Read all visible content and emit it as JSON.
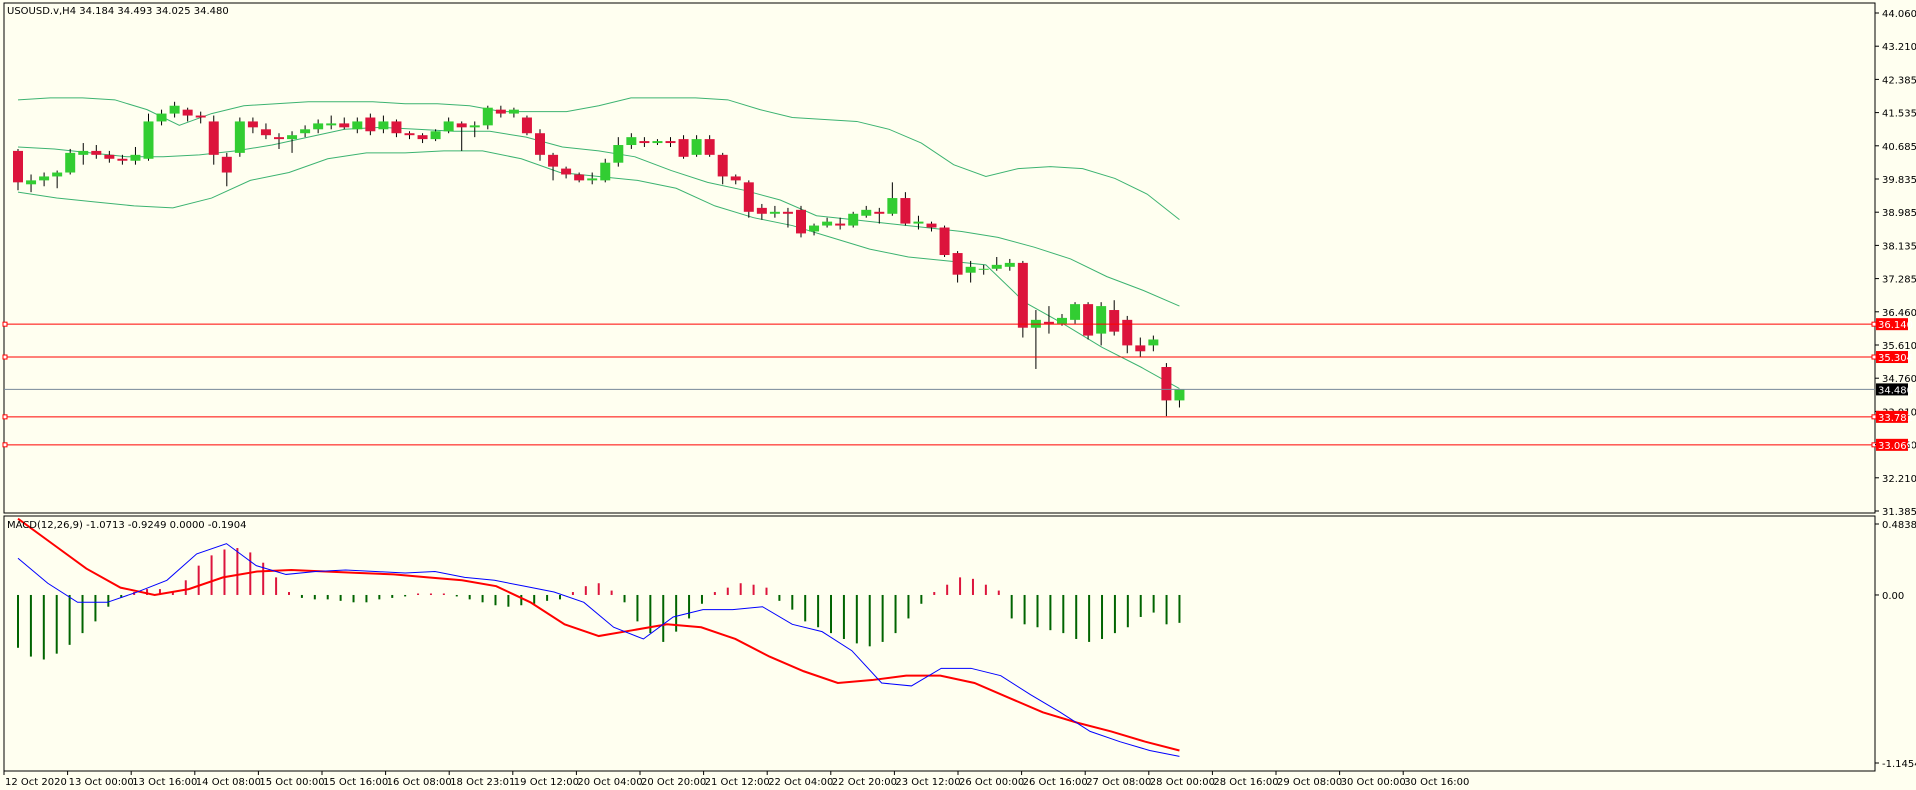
{
  "window": {
    "symbol_line": "USOUSD.v,H4  34.184 34.493 34.025 34.480",
    "macd_label": "MACD(12,26,9) -1.0713 -0.9249 0.0000 -0.1904"
  },
  "colors": {
    "background": "#FFFFF0",
    "bull": "#32CD32",
    "bear": "#DC143C",
    "band": "#3CB371",
    "level_line": "#FF0000",
    "price_line": "#778899",
    "macd_hist": "#006400",
    "macd_signal": "#FF0000",
    "macd_main": "#0000FF"
  },
  "price_axis": {
    "labels": [
      "44.060",
      "43.210",
      "42.385",
      "41.535",
      "40.685",
      "39.835",
      "38.985",
      "38.135",
      "37.285",
      "36.460",
      "35.610",
      "34.760",
      "33.910",
      "33.060",
      "32.210",
      "31.385"
    ]
  },
  "price_tags": [
    {
      "label": "36.140",
      "value": 36.14,
      "kind": "level"
    },
    {
      "label": "35.304",
      "value": 35.304,
      "kind": "level"
    },
    {
      "label": "34.480",
      "value": 34.48,
      "kind": "current"
    },
    {
      "label": "33.781",
      "value": 33.781,
      "kind": "level"
    },
    {
      "label": "33.069",
      "value": 33.069,
      "kind": "level"
    }
  ],
  "macd_axis": {
    "labels": [
      "0.4838",
      "0.00",
      "-1.1454"
    ]
  },
  "time_axis": {
    "labels": [
      "12 Oct 2020",
      "13 Oct 00:00",
      "13 Oct 16:00",
      "14 Oct 08:00",
      "15 Oct 00:00",
      "15 Oct 16:00",
      "16 Oct 08:00",
      "18 Oct 23:01",
      "19 Oct 12:00",
      "20 Oct 04:00",
      "20 Oct 20:00",
      "21 Oct 12:00",
      "22 Oct 04:00",
      "22 Oct 20:00",
      "23 Oct 12:00",
      "26 Oct 00:00",
      "26 Oct 16:00",
      "27 Oct 08:00",
      "28 Oct 00:00",
      "28 Oct 16:00",
      "29 Oct 08:00",
      "30 Oct 00:00",
      "30 Oct 16:00"
    ]
  },
  "chart_data": {
    "type": "candlestick",
    "ylim": [
      31.385,
      44.06
    ],
    "candles": [
      [
        40.55,
        39.75,
        40.6,
        39.55
      ],
      [
        39.7,
        39.8,
        39.95,
        39.5
      ],
      [
        39.8,
        39.9,
        40.0,
        39.65
      ],
      [
        39.9,
        40.0,
        40.05,
        39.6
      ],
      [
        40.0,
        40.5,
        40.6,
        39.95
      ],
      [
        40.45,
        40.55,
        40.75,
        40.2
      ],
      [
        40.55,
        40.45,
        40.7,
        40.35
      ],
      [
        40.45,
        40.35,
        40.55,
        40.25
      ],
      [
        40.35,
        40.3,
        40.45,
        40.2
      ],
      [
        40.3,
        40.45,
        40.65,
        40.2
      ],
      [
        40.35,
        41.3,
        41.5,
        40.3
      ],
      [
        41.3,
        41.5,
        41.6,
        41.2
      ],
      [
        41.5,
        41.7,
        41.8,
        41.4
      ],
      [
        41.6,
        41.45,
        41.65,
        41.3
      ],
      [
        41.45,
        41.4,
        41.55,
        41.25
      ],
      [
        41.3,
        40.45,
        41.45,
        40.2
      ],
      [
        40.4,
        40.0,
        40.5,
        39.65
      ],
      [
        40.5,
        41.3,
        41.4,
        40.4
      ],
      [
        41.3,
        41.15,
        41.4,
        41.0
      ],
      [
        41.1,
        40.95,
        41.25,
        40.85
      ],
      [
        40.9,
        40.85,
        41.0,
        40.6
      ],
      [
        40.85,
        40.95,
        41.05,
        40.5
      ],
      [
        41.0,
        41.1,
        41.2,
        40.9
      ],
      [
        41.1,
        41.25,
        41.35,
        41.0
      ],
      [
        41.2,
        41.25,
        41.45,
        41.1
      ],
      [
        41.25,
        41.15,
        41.4,
        41.1
      ],
      [
        41.1,
        41.3,
        41.4,
        41.0
      ],
      [
        41.4,
        41.05,
        41.5,
        40.95
      ],
      [
        41.1,
        41.3,
        41.45,
        41.0
      ],
      [
        41.3,
        41.0,
        41.35,
        40.9
      ],
      [
        41.0,
        40.95,
        41.05,
        40.85
      ],
      [
        40.95,
        40.85,
        41.0,
        40.75
      ],
      [
        40.85,
        41.05,
        41.1,
        40.8
      ],
      [
        41.05,
        41.3,
        41.4,
        41.0
      ],
      [
        41.25,
        41.15,
        41.3,
        40.55
      ],
      [
        41.15,
        41.2,
        41.3,
        40.9
      ],
      [
        41.2,
        41.65,
        41.7,
        41.1
      ],
      [
        41.6,
        41.5,
        41.7,
        41.4
      ],
      [
        41.5,
        41.6,
        41.65,
        41.4
      ],
      [
        41.4,
        41.0,
        41.45,
        40.95
      ],
      [
        41.0,
        40.45,
        41.1,
        40.3
      ],
      [
        40.45,
        40.15,
        40.5,
        39.8
      ],
      [
        40.1,
        39.95,
        40.15,
        39.85
      ],
      [
        39.95,
        39.8,
        40.0,
        39.75
      ],
      [
        39.8,
        39.85,
        40.0,
        39.7
      ],
      [
        39.8,
        40.25,
        40.35,
        39.75
      ],
      [
        40.25,
        40.7,
        40.9,
        40.15
      ],
      [
        40.7,
        40.9,
        41.0,
        40.6
      ],
      [
        40.8,
        40.75,
        40.9,
        40.65
      ],
      [
        40.75,
        40.8,
        40.85,
        40.7
      ],
      [
        40.8,
        40.75,
        40.9,
        40.65
      ],
      [
        40.85,
        40.4,
        40.95,
        40.35
      ],
      [
        40.45,
        40.85,
        40.95,
        40.4
      ],
      [
        40.85,
        40.45,
        40.95,
        40.4
      ],
      [
        40.45,
        39.9,
        40.5,
        39.7
      ],
      [
        39.9,
        39.8,
        39.95,
        39.7
      ],
      [
        39.75,
        39.0,
        39.8,
        38.85
      ],
      [
        39.1,
        38.95,
        39.2,
        38.8
      ],
      [
        38.95,
        39.0,
        39.15,
        38.85
      ],
      [
        39.0,
        38.95,
        39.1,
        38.6
      ],
      [
        39.05,
        38.45,
        39.15,
        38.35
      ],
      [
        38.5,
        38.65,
        38.7,
        38.4
      ],
      [
        38.65,
        38.75,
        38.85,
        38.6
      ],
      [
        38.7,
        38.65,
        38.85,
        38.55
      ],
      [
        38.65,
        38.95,
        39.0,
        38.6
      ],
      [
        38.9,
        39.05,
        39.15,
        38.85
      ],
      [
        39.0,
        38.95,
        39.1,
        38.7
      ],
      [
        38.95,
        39.35,
        39.75,
        38.9
      ],
      [
        39.35,
        38.7,
        39.5,
        38.65
      ],
      [
        38.7,
        38.75,
        38.9,
        38.55
      ],
      [
        38.7,
        38.6,
        38.75,
        38.5
      ],
      [
        38.6,
        37.9,
        38.65,
        37.85
      ],
      [
        37.95,
        37.4,
        38.0,
        37.2
      ],
      [
        37.45,
        37.6,
        37.75,
        37.2
      ],
      [
        37.55,
        37.55,
        37.65,
        37.4
      ],
      [
        37.55,
        37.65,
        37.85,
        37.5
      ],
      [
        37.6,
        37.7,
        37.8,
        37.5
      ],
      [
        37.7,
        36.05,
        37.75,
        35.8
      ],
      [
        36.05,
        36.25,
        36.5,
        35.0
      ],
      [
        36.2,
        36.15,
        36.6,
        35.9
      ],
      [
        36.15,
        36.3,
        36.4,
        36.1
      ],
      [
        36.25,
        36.65,
        36.7,
        36.15
      ],
      [
        36.65,
        35.85,
        36.7,
        35.75
      ],
      [
        35.9,
        36.6,
        36.7,
        35.6
      ],
      [
        36.5,
        35.95,
        36.75,
        35.85
      ],
      [
        36.25,
        35.6,
        36.35,
        35.4
      ],
      [
        35.6,
        35.45,
        35.8,
        35.3
      ],
      [
        35.6,
        35.75,
        35.85,
        35.45
      ],
      [
        35.05,
        34.2,
        35.15,
        33.8
      ],
      [
        34.2,
        34.48,
        34.49,
        34.02
      ]
    ],
    "upper_band": [
      41.85,
      41.9,
      41.9,
      41.85,
      41.6,
      41.2,
      41.5,
      41.7,
      41.75,
      41.8,
      41.8,
      41.8,
      41.75,
      41.75,
      41.7,
      41.55,
      41.55,
      41.55,
      41.7,
      41.9,
      41.9,
      41.9,
      41.85,
      41.6,
      41.4,
      41.35,
      41.3,
      41.1,
      40.75,
      40.2,
      39.9,
      40.1,
      40.15,
      40.1,
      39.85,
      39.45,
      38.8
    ],
    "middle_band": [
      40.65,
      40.6,
      40.5,
      40.4,
      40.4,
      40.45,
      40.55,
      40.7,
      40.9,
      41.1,
      41.15,
      41.1,
      41.05,
      41.05,
      40.9,
      40.65,
      40.55,
      40.4,
      40.05,
      39.75,
      39.55,
      39.3,
      38.9,
      38.8,
      38.7,
      38.6,
      38.5,
      38.35,
      38.1,
      37.8,
      37.35,
      37.0,
      36.6
    ],
    "lower_band": [
      39.5,
      39.35,
      39.25,
      39.15,
      39.1,
      39.35,
      39.8,
      40.0,
      40.35,
      40.5,
      40.5,
      40.55,
      40.55,
      40.35,
      40.0,
      39.9,
      39.8,
      39.6,
      39.15,
      38.85,
      38.65,
      38.35,
      38.05,
      37.85,
      37.75,
      37.65,
      36.7,
      36.15,
      35.55,
      35.05,
      34.5
    ],
    "levels": [
      36.14,
      35.304,
      33.781,
      33.069
    ],
    "current_price": 34.48,
    "macd": {
      "ylim": [
        -1.1454,
        0.4838
      ],
      "histogram": [
        -0.36,
        -0.42,
        -0.44,
        -0.4,
        -0.34,
        -0.26,
        -0.18,
        -0.08,
        -0.02,
        0.02,
        0.04,
        0.04,
        0.02,
        0.1,
        0.2,
        0.27,
        0.31,
        0.32,
        0.29,
        0.22,
        0.12,
        0.02,
        -0.02,
        -0.03,
        -0.03,
        -0.04,
        -0.05,
        -0.05,
        -0.03,
        -0.02,
        -0.01,
        0.01,
        0.01,
        0.01,
        -0.01,
        -0.03,
        -0.05,
        -0.07,
        -0.08,
        -0.07,
        -0.06,
        -0.04,
        -0.03,
        0.02,
        0.06,
        0.08,
        0.03,
        -0.05,
        -0.18,
        -0.26,
        -0.32,
        -0.25,
        -0.16,
        -0.06,
        0.02,
        0.05,
        0.08,
        0.07,
        0.05,
        -0.04,
        -0.1,
        -0.18,
        -0.22,
        -0.26,
        -0.3,
        -0.33,
        -0.35,
        -0.32,
        -0.26,
        -0.16,
        -0.06,
        0.02,
        0.07,
        0.12,
        0.11,
        0.07,
        0.03,
        -0.16,
        -0.2,
        -0.22,
        -0.24,
        -0.26,
        -0.3,
        -0.32,
        -0.3,
        -0.26,
        -0.22,
        -0.15,
        -0.12,
        -0.2,
        -0.19
      ],
      "main": [
        0.25,
        0.08,
        -0.05,
        -0.05,
        0.02,
        0.1,
        0.28,
        0.35,
        0.2,
        0.14,
        0.16,
        0.17,
        0.16,
        0.15,
        0.16,
        0.12,
        0.1,
        0.06,
        0.02,
        -0.05,
        -0.22,
        -0.3,
        -0.15,
        -0.1,
        -0.1,
        -0.08,
        -0.2,
        -0.25,
        -0.38,
        -0.6,
        -0.62,
        -0.5,
        -0.5,
        -0.55,
        -0.68,
        -0.8,
        -0.93,
        -1.0,
        -1.06,
        -1.1
      ],
      "signal": [
        0.52,
        0.35,
        0.18,
        0.05,
        0.0,
        0.04,
        0.12,
        0.16,
        0.17,
        0.16,
        0.15,
        0.14,
        0.12,
        0.1,
        0.06,
        -0.05,
        -0.2,
        -0.28,
        -0.24,
        -0.2,
        -0.22,
        -0.3,
        -0.42,
        -0.52,
        -0.6,
        -0.58,
        -0.55,
        -0.55,
        -0.6,
        -0.7,
        -0.8,
        -0.87,
        -0.93,
        -1.0,
        -1.06
      ]
    }
  }
}
